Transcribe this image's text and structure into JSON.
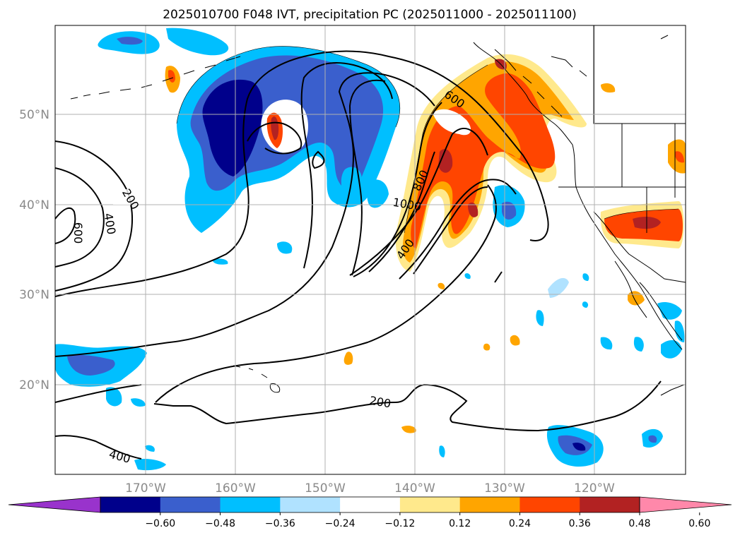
{
  "title": "2025010700 F048 IVT, precipitation PC (2025011000 - 2025011100)",
  "lon_ticks": [
    "170°W",
    "160°W",
    "150°W",
    "140°W",
    "130°W",
    "120°W"
  ],
  "lat_ticks": [
    "50°N",
    "40°N",
    "30°N",
    "20°N"
  ],
  "colorbar": {
    "colors": [
      "#9933cc",
      "#00008b",
      "#3a5fcd",
      "#00bfff",
      "#b0e2ff",
      "#ffffff",
      "#ffe98c",
      "#ffa500",
      "#ff4500",
      "#b22222",
      "#ff88aa"
    ],
    "labels": [
      "−0.60",
      "−0.48",
      "−0.36",
      "−0.24",
      "−0.12",
      "0.12",
      "0.24",
      "0.36",
      "0.48",
      "0.60"
    ]
  },
  "contour_labels": [
    "200",
    "400",
    "600",
    "200",
    "600",
    "800",
    "1000",
    "400",
    "200",
    "400"
  ]
}
